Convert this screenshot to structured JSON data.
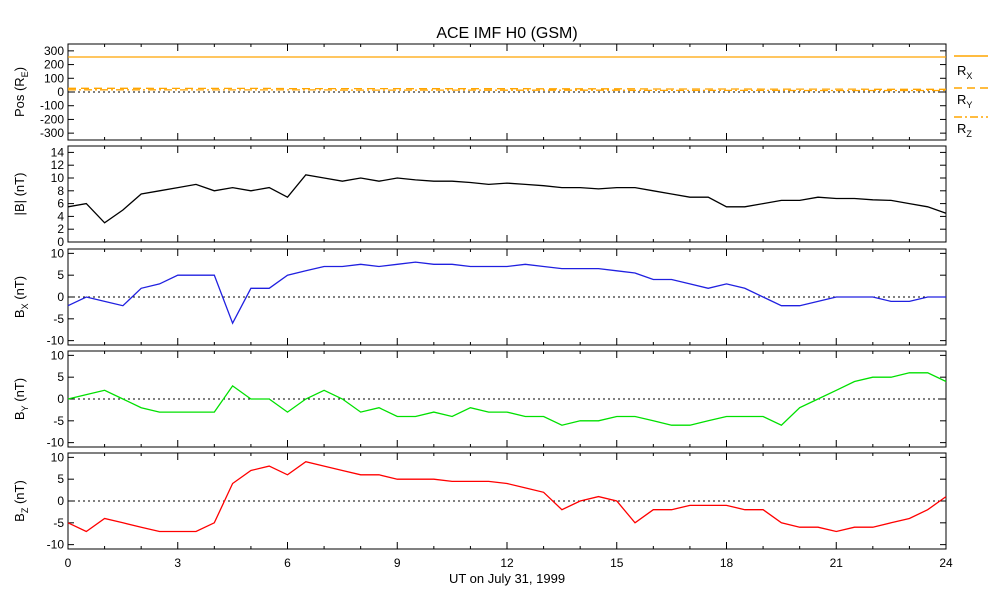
{
  "title": "ACE IMF H0 (GSM)",
  "xlabel": "UT on July 31, 1999",
  "x_ticks": [
    "0",
    "3",
    "6",
    "9",
    "12",
    "15",
    "18",
    "21",
    "24"
  ],
  "xlim": [
    0,
    24
  ],
  "legend": {
    "items": [
      {
        "label": "R",
        "sub": "X",
        "color": "#ffa500",
        "style": "solid"
      },
      {
        "label": "R",
        "sub": "Y",
        "color": "#ffa500",
        "style": "dashed"
      },
      {
        "label": "R",
        "sub": "Z",
        "color": "#ffa500",
        "style": "dashdot"
      }
    ]
  },
  "panels": [
    {
      "id": "pos",
      "ylabel": "Pos (R",
      "ylabel_sub": "E",
      "ylabel_tail": ")",
      "ylim": [
        -350,
        350
      ],
      "yticks": [
        "300",
        "200",
        "100",
        "0",
        "-100",
        "-200",
        "-300"
      ]
    },
    {
      "id": "bmag",
      "ylabel": "|B| (nT)",
      "ylabel_sub": "",
      "ylabel_tail": "",
      "ylim": [
        0,
        15
      ],
      "yticks": [
        "14",
        "12",
        "10",
        "8",
        "6",
        "4",
        "2",
        "0"
      ]
    },
    {
      "id": "bx",
      "ylabel": "B",
      "ylabel_sub": "X",
      "ylabel_tail": " (nT)",
      "ylim": [
        -11,
        11
      ],
      "yticks": [
        "10",
        "5",
        "0",
        "-5",
        "-10"
      ]
    },
    {
      "id": "by",
      "ylabel": "B",
      "ylabel_sub": "Y",
      "ylabel_tail": " (nT)",
      "ylim": [
        -11,
        11
      ],
      "yticks": [
        "10",
        "5",
        "0",
        "-5",
        "-10"
      ]
    },
    {
      "id": "bz",
      "ylabel": "B",
      "ylabel_sub": "Z",
      "ylabel_tail": " (nT)",
      "ylim": [
        -11,
        11
      ],
      "yticks": [
        "10",
        "5",
        "0",
        "-5",
        "-10"
      ]
    }
  ],
  "chart_data": {
    "type": "line",
    "title": "ACE IMF H0 (GSM)",
    "xlabel": "UT on July 31, 1999",
    "xlim": [
      0,
      24
    ],
    "x": [
      0,
      0.5,
      1,
      1.5,
      2,
      2.5,
      3,
      3.5,
      4,
      4.5,
      5,
      5.5,
      6,
      6.5,
      7,
      7.5,
      8,
      8.5,
      9,
      9.5,
      10,
      10.5,
      11,
      11.5,
      12,
      12.5,
      13,
      13.5,
      14,
      14.5,
      15,
      15.5,
      16,
      16.5,
      17,
      17.5,
      18,
      18.5,
      19,
      19.5,
      20,
      20.5,
      21,
      21.5,
      22,
      22.5,
      23,
      23.5,
      24
    ],
    "series": [
      {
        "name": "R",
        "panel": "pos",
        "color": "#ffa500",
        "style": "solid",
        "values": [
          255,
          255,
          255,
          255,
          255,
          255,
          255,
          255,
          255,
          255,
          255,
          255,
          255,
          255,
          255,
          255,
          255,
          255,
          255,
          255,
          255,
          255,
          255,
          255,
          255,
          255,
          255,
          255,
          255,
          255,
          255,
          255,
          255,
          255,
          255,
          255,
          255,
          255,
          255,
          255,
          255,
          255,
          255,
          255,
          255,
          255,
          255,
          255,
          255
        ]
      },
      {
        "name": "R",
        "panel": "pos",
        "color": "#ffa500",
        "style": "dashed",
        "values": [
          27,
          27,
          27,
          27,
          27,
          26,
          26,
          26,
          26,
          26,
          26,
          26,
          25,
          25,
          25,
          25,
          25,
          25,
          25,
          24,
          24,
          24,
          24,
          24,
          24,
          24,
          23,
          23,
          23,
          23,
          23,
          23,
          22,
          22,
          22,
          22,
          22,
          22,
          21,
          21,
          21,
          21,
          21,
          21,
          20,
          20,
          20,
          20,
          20
        ]
      },
      {
        "name": "R",
        "panel": "pos",
        "color": "#ffa500",
        "style": "dashdot",
        "values": [
          16,
          16,
          16,
          16,
          16,
          16,
          15,
          15,
          15,
          15,
          15,
          15,
          15,
          15,
          15,
          14,
          14,
          14,
          14,
          14,
          14,
          14,
          14,
          13,
          13,
          13,
          13,
          13,
          13,
          13,
          13,
          12,
          12,
          12,
          12,
          12,
          12,
          12,
          12,
          12,
          11,
          11,
          11,
          11,
          11,
          11,
          11,
          11,
          11
        ]
      },
      {
        "name": "|B|",
        "panel": "bmag",
        "color": "#000000",
        "values": [
          5.5,
          6,
          3,
          5,
          7.5,
          8,
          8.5,
          9,
          8,
          8.5,
          8,
          8.5,
          7,
          10.5,
          10,
          9.5,
          10,
          9.5,
          10,
          9.7,
          9.5,
          9.5,
          9.3,
          9,
          9.2,
          9,
          8.8,
          8.5,
          8.5,
          8.3,
          8.5,
          8.5,
          8,
          7.5,
          7,
          7,
          5.5,
          5.5,
          6,
          6.5,
          6.5,
          7,
          6.8,
          6.8,
          6.6,
          6.5,
          6,
          5.5,
          4.5
        ]
      },
      {
        "name": "Bx",
        "panel": "bx",
        "color": "#2020e0",
        "values": [
          -2,
          0,
          -1,
          -2,
          2,
          3,
          5,
          5,
          5,
          -6,
          2,
          2,
          5,
          6,
          7,
          7,
          7.5,
          7,
          7.5,
          8,
          7.5,
          7.5,
          7,
          7,
          7,
          7.5,
          7,
          6.5,
          6.5,
          6.5,
          6,
          5.5,
          4,
          4,
          3,
          2,
          3,
          2,
          0,
          -2,
          -2,
          -1,
          0,
          0,
          0,
          -1,
          -1,
          0,
          0
        ]
      },
      {
        "name": "By",
        "panel": "by",
        "color": "#00e000",
        "values": [
          0,
          1,
          2,
          0,
          -2,
          -3,
          -3,
          -3,
          -3,
          3,
          0,
          0,
          -3,
          0,
          2,
          0,
          -3,
          -2,
          -4,
          -4,
          -3,
          -4,
          -2,
          -3,
          -3,
          -4,
          -4,
          -6,
          -5,
          -5,
          -4,
          -4,
          -5,
          -6,
          -6,
          -5,
          -4,
          -4,
          -4,
          -6,
          -2,
          0,
          2,
          4,
          5,
          5,
          6,
          6,
          4
        ]
      },
      {
        "name": "Bz",
        "panel": "bz",
        "color": "#ff0000",
        "values": [
          -5,
          -7,
          -4,
          -5,
          -6,
          -7,
          -7,
          -7,
          -5,
          4,
          7,
          8,
          6,
          9,
          8,
          7,
          6,
          6,
          5,
          5,
          5,
          4.5,
          4.5,
          4.5,
          4,
          3,
          2,
          -2,
          0,
          1,
          0,
          -5,
          -2,
          -2,
          -1,
          -1,
          -1,
          -2,
          -2,
          -5,
          -6,
          -6,
          -7,
          -6,
          -6,
          -5,
          -4,
          -2,
          1
        ]
      }
    ]
  }
}
